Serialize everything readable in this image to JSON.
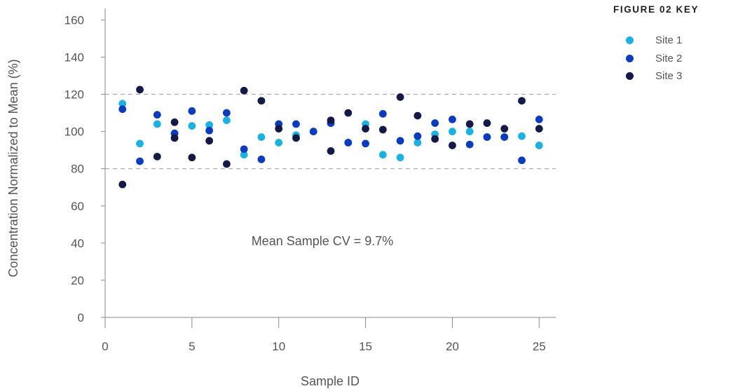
{
  "chart_data": {
    "type": "scatter",
    "xlabel": "Sample ID",
    "ylabel": "Concentration Normalized to Mean (%)",
    "xlim": [
      0,
      26
    ],
    "ylim": [
      0,
      160
    ],
    "xticks": [
      0,
      5,
      10,
      15,
      20,
      25
    ],
    "yticks": [
      0,
      20,
      40,
      60,
      80,
      100,
      120,
      140,
      160
    ],
    "grid": false,
    "reference_lines": [
      80,
      120
    ],
    "annotation": "Mean Sample CV = 9.7%",
    "legend_title": "FIGURE 02 KEY",
    "legend_position": "top-right",
    "series": [
      {
        "name": "Site 1",
        "color": "#1cb1df",
        "points": [
          {
            "x": 1,
            "y": 115
          },
          {
            "x": 2,
            "y": 93.5
          },
          {
            "x": 3,
            "y": 104
          },
          {
            "x": 4,
            "y": 99
          },
          {
            "x": 5,
            "y": 103
          },
          {
            "x": 6,
            "y": 103.5
          },
          {
            "x": 7,
            "y": 106
          },
          {
            "x": 8,
            "y": 87.5
          },
          {
            "x": 9,
            "y": 97
          },
          {
            "x": 10,
            "y": 94
          },
          {
            "x": 11,
            "y": 98
          },
          {
            "x": 12,
            "y": 100
          },
          {
            "x": 13,
            "y": 104.5
          },
          {
            "x": 14,
            "y": 94
          },
          {
            "x": 15,
            "y": 104
          },
          {
            "x": 16,
            "y": 87.5
          },
          {
            "x": 17,
            "y": 86
          },
          {
            "x": 18,
            "y": 94
          },
          {
            "x": 19,
            "y": 98.5
          },
          {
            "x": 20,
            "y": 100
          },
          {
            "x": 21,
            "y": 100
          },
          {
            "x": 22,
            "y": 97
          },
          {
            "x": 23,
            "y": 97
          },
          {
            "x": 24,
            "y": 97.5
          },
          {
            "x": 25,
            "y": 92.5
          }
        ]
      },
      {
        "name": "Site 2",
        "color": "#0d3bbd",
        "points": [
          {
            "x": 1,
            "y": 112
          },
          {
            "x": 2,
            "y": 84
          },
          {
            "x": 3,
            "y": 109
          },
          {
            "x": 4,
            "y": 99
          },
          {
            "x": 5,
            "y": 111
          },
          {
            "x": 6,
            "y": 100.5
          },
          {
            "x": 7,
            "y": 110
          },
          {
            "x": 8,
            "y": 90.5
          },
          {
            "x": 9,
            "y": 85
          },
          {
            "x": 10,
            "y": 104
          },
          {
            "x": 11,
            "y": 104
          },
          {
            "x": 12,
            "y": 100
          },
          {
            "x": 13,
            "y": 104.5
          },
          {
            "x": 14,
            "y": 94
          },
          {
            "x": 15,
            "y": 93.5
          },
          {
            "x": 16,
            "y": 109.5
          },
          {
            "x": 17,
            "y": 95
          },
          {
            "x": 18,
            "y": 97.5
          },
          {
            "x": 19,
            "y": 104.5
          },
          {
            "x": 20,
            "y": 106.5
          },
          {
            "x": 21,
            "y": 93
          },
          {
            "x": 22,
            "y": 97
          },
          {
            "x": 23,
            "y": 97
          },
          {
            "x": 24,
            "y": 84.5
          },
          {
            "x": 25,
            "y": 106.5
          }
        ]
      },
      {
        "name": "Site 3",
        "color": "#141a45",
        "points": [
          {
            "x": 1,
            "y": 71.5
          },
          {
            "x": 2,
            "y": 122.5
          },
          {
            "x": 3,
            "y": 86.5
          },
          {
            "x": 4,
            "y": 105
          },
          {
            "x": 4,
            "y": 96.5
          },
          {
            "x": 5,
            "y": 86
          },
          {
            "x": 6,
            "y": 95
          },
          {
            "x": 7,
            "y": 82.5
          },
          {
            "x": 8,
            "y": 122
          },
          {
            "x": 9,
            "y": 116.5
          },
          {
            "x": 10,
            "y": 101.5
          },
          {
            "x": 11,
            "y": 96.5
          },
          {
            "x": 13,
            "y": 106
          },
          {
            "x": 13,
            "y": 89.5
          },
          {
            "x": 14,
            "y": 110
          },
          {
            "x": 15,
            "y": 101.5
          },
          {
            "x": 16,
            "y": 101
          },
          {
            "x": 17,
            "y": 118.5
          },
          {
            "x": 18,
            "y": 108.5
          },
          {
            "x": 19,
            "y": 96
          },
          {
            "x": 20,
            "y": 92.5
          },
          {
            "x": 21,
            "y": 104
          },
          {
            "x": 22,
            "y": 104.5
          },
          {
            "x": 23,
            "y": 101.5
          },
          {
            "x": 24,
            "y": 116.5
          },
          {
            "x": 25,
            "y": 101.5
          }
        ]
      }
    ]
  }
}
